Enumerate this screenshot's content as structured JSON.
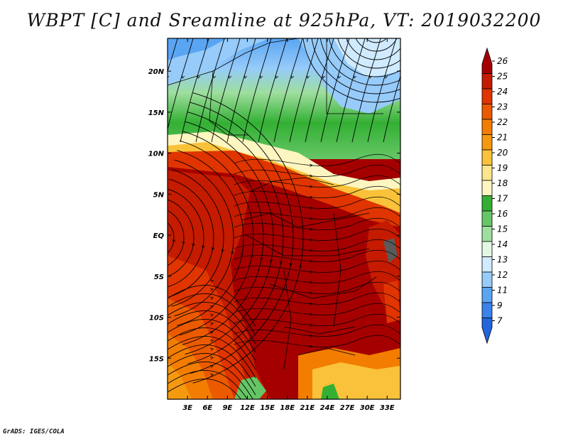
{
  "title": "WBPT [C] and Sreamline at 925hPa, VT: 2019032200",
  "footer": "GrADS: IGES/COLA",
  "map": {
    "lon_ticks": [
      "3E",
      "6E",
      "9E",
      "12E",
      "15E",
      "18E",
      "21E",
      "24E",
      "27E",
      "30E",
      "33E"
    ],
    "lat_ticks": [
      "20N",
      "15N",
      "10N",
      "5N",
      "EQ",
      "5S",
      "10S",
      "15S"
    ],
    "lon_range_deg": [
      0,
      35
    ],
    "lat_range_deg": [
      -20,
      24
    ]
  },
  "colorbar": {
    "labels": [
      "26",
      "25",
      "24",
      "23",
      "22",
      "21",
      "20",
      "19",
      "18",
      "17",
      "16",
      "15",
      "14",
      "13",
      "12",
      "11",
      "9",
      "7"
    ],
    "colors": [
      "#a50000",
      "#c51b00",
      "#e03500",
      "#ec5a00",
      "#f27d00",
      "#f59a10",
      "#f9c23a",
      "#fde58c",
      "#fdf6c0",
      "#33b033",
      "#66c666",
      "#9ede9e",
      "#e4f7e4",
      "#d0ebff",
      "#96cbfa",
      "#5aa5f2",
      "#3b82ea",
      "#2266dd"
    ]
  }
}
